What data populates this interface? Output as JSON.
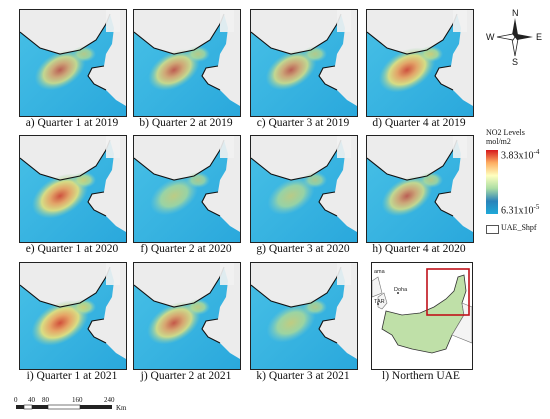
{
  "panels": [
    {
      "caption": "a) Quarter 1 at 2019",
      "intensity": 0.55
    },
    {
      "caption": "b) Quarter 2 at 2019",
      "intensity": 0.6
    },
    {
      "caption": "c) Quarter 3 at 2019",
      "intensity": 0.55
    },
    {
      "caption": "d) Quarter 4 at 2019",
      "intensity": 0.85
    },
    {
      "caption": "e) Quarter 1 at 2020",
      "intensity": 0.85
    },
    {
      "caption": "f) Quarter 2 at 2020",
      "intensity": 0.4
    },
    {
      "caption": "g) Quarter 3 at 2020",
      "intensity": 0.35
    },
    {
      "caption": "h) Quarter 4 at 2020",
      "intensity": 0.55
    },
    {
      "caption": "i) Quarter 1 at 2021",
      "intensity": 0.9
    },
    {
      "caption": "j) Quarter 2 at 2021",
      "intensity": 0.7
    },
    {
      "caption": "k) Quarter 3 at 2021",
      "intensity": 0.45
    }
  ],
  "inset": {
    "caption": "l) Northern UAE",
    "labels": [
      "ama",
      "Doha",
      "TAR"
    ]
  },
  "north_arrow": {
    "n": "N",
    "s": "S",
    "e": "E",
    "w": "W"
  },
  "legend": {
    "title_line1": "NO2 Levels",
    "title_line2": "mol/m2",
    "max_label": "3.83x10",
    "max_exp": "-4",
    "min_label": "6.31x10",
    "min_exp": "-5",
    "shapefile_label": "UAE_Shpf",
    "colors": {
      "high": "#d7191c",
      "mid": "#ffffbf",
      "low": "#1fa9d8"
    }
  },
  "scale_bar": {
    "ticks": [
      "0",
      "40",
      "80",
      "160",
      "240"
    ],
    "unit": "Km"
  }
}
